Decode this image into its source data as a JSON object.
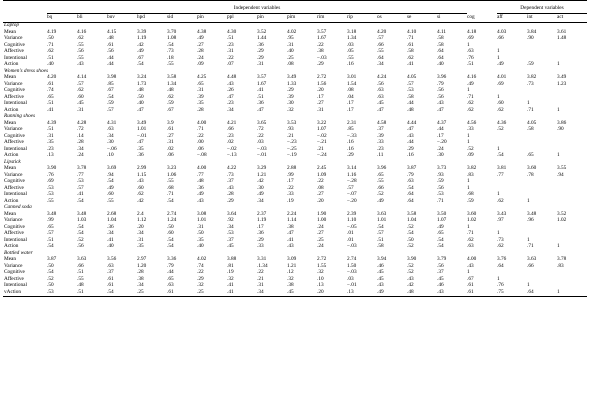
{
  "header": {
    "independent_label": "Independent variables",
    "dependent_label": "Dependent variables",
    "columns": [
      "bq",
      "bli",
      "buv",
      "hpd",
      "sid",
      "pin",
      "ppl",
      "pin",
      "pim",
      "rim",
      "rip",
      "os",
      "se",
      "si",
      "cog",
      "aff",
      "int",
      "act"
    ]
  },
  "sections": [
    {
      "title": "Laptop",
      "rows": [
        {
          "label": "Mean",
          "cells": [
            "4.19",
            "4.16",
            "4.15",
            "3.39",
            "3.70",
            "4.38",
            "4.30",
            "3.52",
            "4.02",
            "3.57",
            "3.18",
            "4.20",
            "4.10",
            "4.11",
            "4.18",
            "4.03",
            "3.84",
            "3.61"
          ]
        },
        {
          "label": "Variance",
          "cells": [
            ".50",
            ".62",
            ".48",
            "1.19",
            "1.08",
            ".49",
            ".51",
            "1.44",
            ".95",
            "1.67",
            "1.34",
            ".57",
            ".71",
            ".58",
            ".69",
            ".66",
            ".90",
            "1.48"
          ]
        },
        {
          "label": "Cognitive",
          "cells": [
            ".71",
            ".55",
            ".61",
            ".42",
            ".54",
            ".27",
            ".23",
            ".36",
            ".31",
            ".22",
            ".03",
            ".66",
            ".61",
            ".58",
            "1",
            "",
            "",
            ""
          ]
        },
        {
          "label": "Affective",
          "cells": [
            ".62",
            ".56",
            ".56",
            ".49",
            ".73",
            ".28",
            ".31",
            ".29",
            ".40",
            ".38",
            ".05",
            ".55",
            ".58",
            ".64",
            ".63",
            "1",
            "",
            ""
          ]
        },
        {
          "label": "Intentional",
          "cells": [
            ".51",
            ".55",
            ".44",
            ".67",
            ".18",
            ".24",
            ".22",
            ".29",
            ".25",
            "−.03",
            ".55",
            ".64",
            ".62",
            ".64",
            ".76",
            "1",
            "",
            ""
          ]
        },
        {
          "label": "Action",
          "cells": [
            ".40",
            ".43",
            ".44",
            ".54",
            ".55",
            ".09",
            ".07",
            ".31",
            ".08",
            ".29",
            ".16",
            ".34",
            ".41",
            ".40",
            ".51",
            ".49",
            ".59",
            "1"
          ]
        }
      ]
    },
    {
      "title": "Women's dress shoes",
      "rows": [
        {
          "label": "Mean",
          "cells": [
            "4.20",
            "4.14",
            "3.98",
            "3.24",
            "3.58",
            "4.25",
            "4.48",
            "3.57",
            "3.49",
            "2.72",
            "3.01",
            "4.24",
            "4.05",
            "3.96",
            "4.16",
            "4.01",
            "3.82",
            "3.49"
          ]
        },
        {
          "label": "Variance",
          "cells": [
            ".61",
            ".57",
            ".85",
            "1.73",
            "1.34",
            ".65",
            ".43",
            "1.67",
            "1.33",
            "1.56",
            "1.54",
            ".56",
            ".57",
            ".79",
            ".49",
            ".69",
            ".73",
            "1.23"
          ]
        },
        {
          "label": "Cognitive",
          "cells": [
            ".74",
            ".62",
            ".67",
            ".48",
            ".48",
            ".31",
            ".26",
            ".41",
            ".29",
            ".20",
            ".08",
            ".63",
            ".53",
            ".56",
            "1",
            "",
            "",
            ""
          ]
        },
        {
          "label": "Affective",
          "cells": [
            ".65",
            ".60",
            ".54",
            ".50",
            ".62",
            ".39",
            ".47",
            ".51",
            ".39",
            ".17",
            ".04",
            ".63",
            ".58",
            ".56",
            ".71",
            "1",
            "",
            ""
          ]
        },
        {
          "label": "Intentional",
          "cells": [
            ".51",
            ".45",
            ".59",
            ".40",
            ".59",
            ".35",
            ".23",
            ".36",
            ".30",
            ".27",
            ".17",
            ".45",
            ".44",
            ".43",
            ".62",
            ".60",
            "1",
            ""
          ]
        },
        {
          "label": "Action",
          "cells": [
            ".41",
            ".31",
            ".57",
            ".47",
            ".67",
            ".28",
            ".34",
            ".47",
            ".32",
            ".31",
            ".17",
            ".47",
            ".48",
            ".47",
            ".62",
            ".62",
            ".71",
            "1"
          ]
        }
      ]
    },
    {
      "title": "Running shoes",
      "rows": [
        {
          "label": "Mean",
          "cells": [
            "4.39",
            "4.28",
            "4.31",
            "3.49",
            "3.9",
            "4.00",
            "4.21",
            "3.65",
            "3.53",
            "3.22",
            "2.31",
            "4.58",
            "4.44",
            "4.37",
            "4.56",
            "4.36",
            "4.05",
            "3.86"
          ]
        },
        {
          "label": "Variance",
          "cells": [
            ".51",
            ".72",
            ".63",
            "1.01",
            ".61",
            ".71",
            ".66",
            ".72",
            ".93",
            "1.07",
            ".85",
            ".37",
            ".47",
            ".44",
            ".33",
            ".52",
            ".58",
            ".90"
          ]
        },
        {
          "label": "Cognitive",
          "cells": [
            ".31",
            ".14",
            ".34",
            "−.01",
            ".27",
            ".22",
            ".23",
            ".22",
            ".21",
            "−.02",
            "−.33",
            ".39",
            ".43",
            ".17",
            "1",
            "",
            "",
            ""
          ]
        },
        {
          "label": "Affective",
          "cells": [
            ".35",
            ".28",
            ".30",
            ".47",
            ".31",
            ".00",
            ".02",
            ".03",
            "−.23",
            "−.21",
            ".16",
            ".33",
            ".44",
            "−.20",
            "1",
            "",
            "",
            ""
          ]
        },
        {
          "label": "Intentional",
          "cells": [
            ".23",
            ".34",
            "−.06",
            ".35",
            ".02",
            ".06",
            "−.02",
            "−.03",
            "−.25",
            ".21",
            ".16",
            ".23",
            ".29",
            ".24",
            ".52",
            "1",
            "",
            ""
          ]
        },
        {
          "label": "Action",
          "cells": [
            ".13",
            ".24",
            ".10",
            ".36",
            ".06",
            "−.08",
            "−.13",
            "−.01",
            "−.19",
            "−.24",
            ".29",
            ".11",
            ".16",
            ".30",
            ".09",
            ".54",
            ".65",
            "1"
          ]
        }
      ]
    },
    {
      "title": "Lipstick",
      "rows": [
        {
          "label": "Mean",
          "cells": [
            "3.90",
            "3.78",
            "3.69",
            "2.99",
            "3.23",
            "4.00",
            "4.22",
            "3.29",
            "2.88",
            "2.45",
            "3.14",
            "3.96",
            "3.87",
            "3.73",
            "3.82",
            "3.81",
            "3.60",
            "3.55"
          ]
        },
        {
          "label": "Variance",
          "cells": [
            ".76",
            ".77",
            ".94",
            "1.15",
            "1.06",
            ".77",
            ".73",
            "1.21",
            ".99",
            "1.09",
            "1.16",
            ".65",
            ".79",
            ".93",
            ".83",
            ".77",
            ".78",
            ".94"
          ]
        },
        {
          "label": "Cognitive",
          "cells": [
            ".69",
            ".53",
            ".54",
            ".43",
            ".55",
            ".48",
            ".37",
            ".42",
            ".17",
            ".22",
            "−.28",
            ".55",
            ".63",
            ".59",
            "1",
            "",
            "",
            ""
          ]
        },
        {
          "label": "Affective",
          "cells": [
            ".53",
            ".57",
            ".49",
            ".60",
            ".68",
            ".36",
            ".43",
            ".30",
            ".22",
            ".08",
            ".57",
            ".66",
            ".54",
            ".56",
            "1",
            "",
            "",
            ""
          ]
        },
        {
          "label": "Intentional",
          "cells": [
            ".53",
            ".41",
            ".60",
            ".62",
            ".71",
            ".49",
            ".28",
            ".49",
            ".33",
            ".27",
            "−.07",
            ".52",
            ".64",
            ".53",
            ".68",
            "1",
            "",
            ""
          ]
        },
        {
          "label": "Action",
          "cells": [
            ".55",
            ".54",
            ".55",
            ".42",
            ".54",
            ".43",
            ".29",
            ".34",
            ".19",
            ".20",
            "−.20",
            ".49",
            ".64",
            ".71",
            ".59",
            ".62",
            "1",
            ""
          ]
        }
      ]
    },
    {
      "title": "Canned soda",
      "rows": [
        {
          "label": "Mean",
          "cells": [
            "3.48",
            "3.48",
            "2.68",
            "2.4",
            "2.74",
            "3.08",
            "3.64",
            "2.37",
            "2.24",
            "1.90",
            "2.39",
            "3.63",
            "3.58",
            "3.50",
            "3.60",
            "3.43",
            "3.48",
            "3.52"
          ]
        },
        {
          "label": "Variance",
          "cells": [
            ".99",
            "1.03",
            "1.04",
            "1.12",
            "1.24",
            "1.01",
            ".92",
            "1.19",
            "1.14",
            "1.00",
            "1.10",
            "1.01",
            "1.04",
            "1.07",
            "1.02",
            ".97",
            ".96",
            "1.02"
          ]
        },
        {
          "label": "Cognitive",
          "cells": [
            ".65",
            ".54",
            ".36",
            ".20",
            ".50",
            ".31",
            ".34",
            ".17",
            ".38",
            ".24",
            "−.05",
            ".54",
            ".52",
            ".49",
            "1",
            "",
            "",
            ""
          ]
        },
        {
          "label": "Affective",
          "cells": [
            ".57",
            ".54",
            ".34",
            ".34",
            ".60",
            ".50",
            ".53",
            ".36",
            ".47",
            ".27",
            ".01",
            ".57",
            ".54",
            ".65",
            ".71",
            "1",
            "",
            ""
          ]
        },
        {
          "label": "Intentional",
          "cells": [
            ".51",
            ".52",
            ".41",
            ".31",
            ".54",
            ".35",
            ".37",
            ".29",
            ".41",
            ".25",
            ".01",
            ".51",
            ".50",
            ".54",
            ".62",
            ".73",
            "1",
            ""
          ]
        },
        {
          "label": "Action",
          "cells": [
            ".54",
            ".56",
            ".40",
            ".35",
            ".54",
            ".40",
            ".45",
            ".33",
            ".43",
            ".24",
            "−.03",
            ".58",
            ".52",
            ".54",
            ".63",
            ".62",
            ".71",
            "1"
          ]
        }
      ]
    },
    {
      "title": "Bottled water",
      "rows": [
        {
          "label": "Mean",
          "cells": [
            "3.87",
            "3.63",
            "3.56",
            "2.97",
            "3.36",
            "4.02",
            "3.88",
            "3.31",
            "3.09",
            "2.72",
            "2.74",
            "3.94",
            "3.90",
            "3.79",
            "4.00",
            "3.76",
            "3.63",
            "3.78"
          ]
        },
        {
          "label": "Variance",
          "cells": [
            ".50",
            ".66",
            ".63",
            "1.20",
            ".79",
            ".74",
            ".81",
            ".1.34",
            "1.21",
            "1.55",
            "1.50",
            ".46",
            ".52",
            ".56",
            ".43",
            ".64",
            ".66",
            ".83"
          ]
        },
        {
          "label": "Cognitive",
          "cells": [
            ".54",
            ".51",
            ".37",
            ".28",
            ".44",
            ".22",
            ".19",
            ".22",
            ".12",
            ".32",
            "−.03",
            ".45",
            ".52",
            ".37",
            "1",
            "",
            "",
            ""
          ]
        },
        {
          "label": "Affective",
          "cells": [
            ".52",
            ".55",
            ".61",
            ".38",
            ".65",
            ".29",
            ".32",
            ".21",
            ".32",
            ".10",
            ".03",
            ".45",
            ".43",
            ".45",
            ".67",
            "1",
            "",
            ""
          ]
        },
        {
          "label": "Intentional",
          "cells": [
            ".50",
            ".48",
            ".61",
            ".34",
            ".63",
            ".32",
            ".41",
            ".31",
            ".38",
            ".13",
            "−.01",
            ".43",
            ".42",
            ".46",
            ".61",
            ".76",
            "1",
            ""
          ]
        },
        {
          "label": "vAction",
          "cells": [
            ".53",
            ".51",
            ".54",
            ".25",
            ".61",
            ".25",
            ".41",
            ".34",
            ".45",
            ".20",
            ".13",
            ".49",
            ".48",
            ".43",
            ".61",
            ".75",
            ".64",
            "1"
          ]
        }
      ]
    }
  ]
}
